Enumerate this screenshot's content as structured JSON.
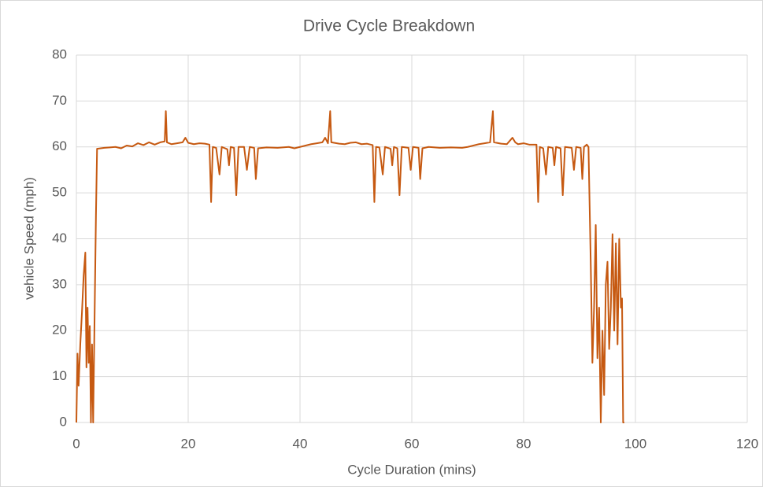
{
  "chart_data": {
    "type": "line",
    "title": "Drive Cycle Breakdown",
    "x_label": "Cycle Duration (mins)",
    "y_label": "vehicle Speed (mph)",
    "xlim": [
      0,
      120
    ],
    "xticks": [
      0,
      20,
      40,
      60,
      80,
      100,
      120
    ],
    "ylim": [
      0,
      80
    ],
    "yticks": [
      0,
      10,
      20,
      30,
      40,
      50,
      60,
      70,
      80
    ],
    "grid": true,
    "series": [
      {
        "color": "#c65911",
        "x": [
          0,
          0.2,
          0.4,
          0.7,
          1.0,
          1.3,
          1.6,
          1.8,
          2.0,
          2.2,
          2.4,
          2.6,
          2.8,
          3.0,
          3.2,
          3.5,
          3.7,
          5,
          6,
          7,
          8,
          9,
          10,
          11,
          12,
          13,
          14,
          15,
          15.8,
          16,
          16.2,
          17,
          18,
          19,
          19.5,
          20,
          21,
          22,
          23,
          23.8,
          24.1,
          24.4,
          25,
          25.6,
          26,
          27,
          27.3,
          27.6,
          28.2,
          28.6,
          29,
          30,
          30.5,
          31,
          31.8,
          32.1,
          32.5,
          34,
          36,
          38,
          39,
          40,
          41,
          42,
          43,
          44,
          44.5,
          45,
          45.4,
          45.6,
          47,
          48,
          49,
          50,
          51,
          52,
          53,
          53.3,
          53.6,
          54.2,
          54.8,
          55.2,
          56.2,
          56.5,
          56.8,
          57.4,
          57.8,
          58.2,
          59.4,
          59.8,
          60.2,
          61.2,
          61.5,
          61.9,
          63,
          65,
          67,
          69,
          70,
          71,
          72,
          73,
          74,
          74.5,
          74.7,
          76,
          77,
          78,
          78.5,
          79,
          80,
          81,
          82.3,
          82.6,
          82.9,
          83.5,
          84,
          84.4,
          85.2,
          85.5,
          85.8,
          86.6,
          87,
          87.4,
          88.6,
          89,
          89.4,
          90.2,
          90.5,
          90.8,
          91.3,
          91.6,
          92,
          92.3,
          92.6,
          92.9,
          93.2,
          93.5,
          93.8,
          94.1,
          94.4,
          94.7,
          95,
          95.3,
          95.6,
          95.9,
          96.2,
          96.5,
          96.8,
          97.1,
          97.4,
          97.6,
          97.8,
          98
        ],
        "values": [
          0,
          15,
          8,
          17,
          24,
          32,
          37,
          12,
          25,
          13,
          21,
          0,
          17,
          0,
          18,
          45,
          59.6,
          59.8,
          59.9,
          60,
          59.7,
          60.3,
          60.1,
          60.8,
          60.4,
          61,
          60.5,
          61,
          61.2,
          67.8,
          61,
          60.6,
          60.8,
          61,
          62,
          60.9,
          60.6,
          60.8,
          60.7,
          60.5,
          48,
          60,
          59.8,
          54,
          60,
          59.5,
          56,
          60,
          59.8,
          49.5,
          60,
          60,
          55,
          60,
          59.8,
          53,
          59.7,
          59.9,
          59.8,
          60,
          59.7,
          60,
          60.3,
          60.6,
          60.8,
          61,
          62,
          60.8,
          67.8,
          61,
          60.7,
          60.6,
          60.9,
          61,
          60.6,
          60.7,
          60.4,
          48,
          60,
          59.9,
          54,
          60,
          59.6,
          56,
          60,
          59.7,
          49.5,
          60,
          59.8,
          55,
          60,
          59.8,
          53,
          59.7,
          60,
          59.8,
          59.9,
          59.8,
          60,
          60.3,
          60.6,
          60.8,
          61,
          67.8,
          61,
          60.7,
          60.6,
          62,
          61,
          60.6,
          60.8,
          60.5,
          60.5,
          48,
          60,
          59.7,
          54,
          60,
          59.8,
          56,
          60,
          59.7,
          49.5,
          60,
          59.8,
          55,
          60,
          59.8,
          53,
          60,
          60.5,
          60,
          35,
          13,
          25,
          43,
          14,
          25,
          0,
          20,
          6,
          30,
          35,
          16,
          25,
          41,
          20,
          39,
          17,
          40,
          25,
          27,
          0,
          0
        ]
      }
    ]
  }
}
